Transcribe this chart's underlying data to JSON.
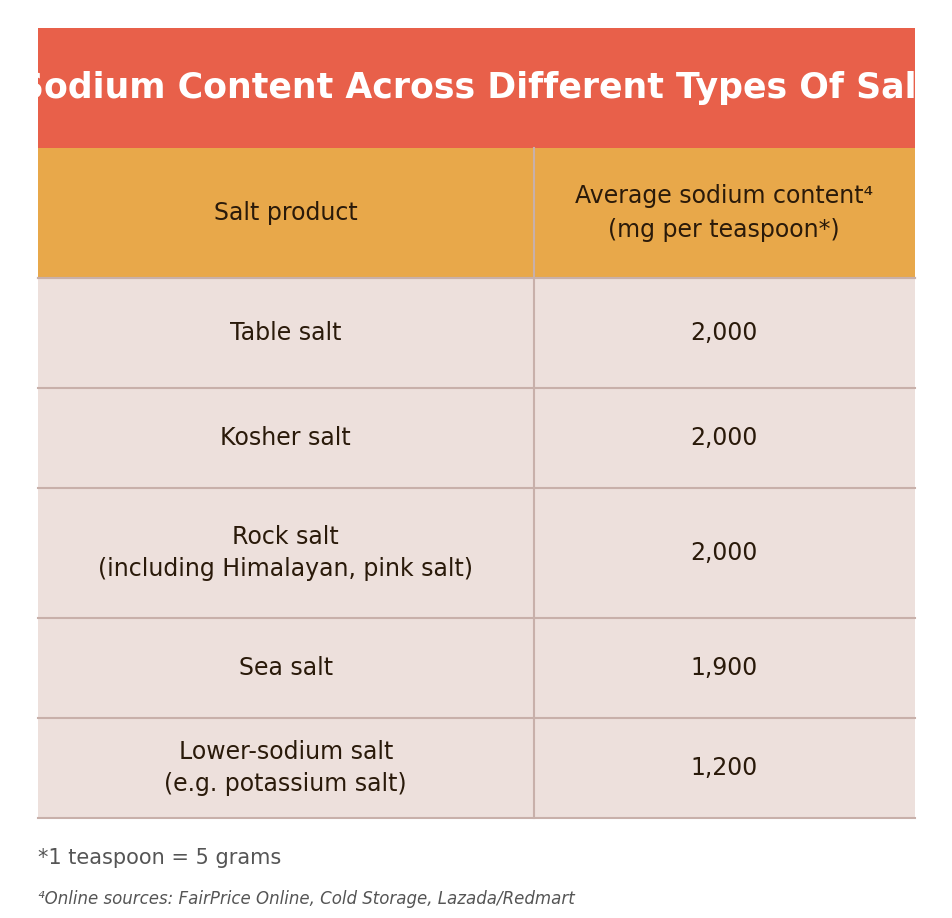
{
  "title": "Sodium Content Across Different Types Of Salt",
  "title_bg_color": "#E8604A",
  "title_text_color": "#FFFFFF",
  "header_bg_color": "#E8A84A",
  "header_col1": "Salt product",
  "header_col2": "Average sodium content⁴\n(mg per teaspoon*)",
  "header_text_color": "#2A1A0A",
  "row_bg_color": "#EDE0DC",
  "divider_color": "#C8B0AA",
  "body_text_color": "#2A1A0A",
  "rows": [
    [
      "Table salt",
      "2,000"
    ],
    [
      "Kosher salt",
      "2,000"
    ],
    [
      "Rock salt\n(including Himalayan, pink salt)",
      "2,000"
    ],
    [
      "Sea salt",
      "1,900"
    ],
    [
      "Lower-sodium salt\n(e.g. potassium salt)",
      "1,200"
    ]
  ],
  "footnote1": "*1 teaspoon = 5 grams",
  "footnote2": "⁴Online sources: FairPrice Online, Cold Storage, Lazada/Redmart",
  "footnote_color": "#555555",
  "col_split": 0.565,
  "background_color": "#FFFFFF",
  "title_fontsize": 25,
  "header_fontsize": 17,
  "body_fontsize": 17,
  "footnote1_fontsize": 15,
  "footnote2_fontsize": 12
}
